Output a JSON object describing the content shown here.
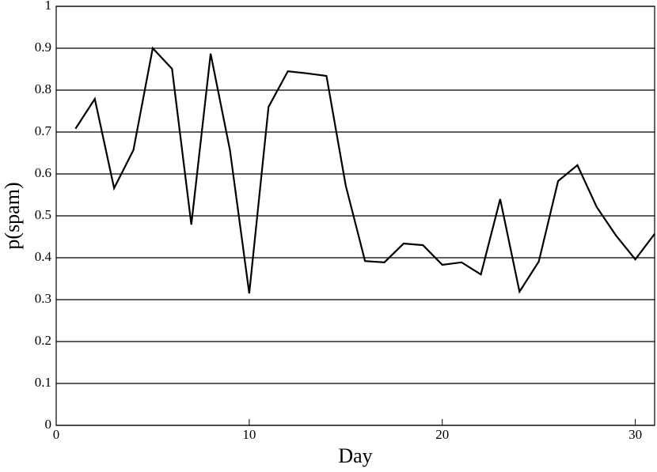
{
  "chart_data": {
    "type": "line",
    "x_label": "Day",
    "y_label": "p(spam)",
    "x": [
      1,
      2,
      3,
      4,
      5,
      6,
      7,
      8,
      9,
      10,
      11,
      12,
      13,
      14,
      15,
      16,
      17,
      18,
      19,
      20,
      21,
      22,
      23,
      24,
      25,
      26,
      27,
      28,
      29,
      30,
      31
    ],
    "series": [
      {
        "color": "#000000",
        "values": [
          0.708,
          0.779,
          0.566,
          0.657,
          0.9,
          0.851,
          0.479,
          0.887,
          0.657,
          0.315,
          0.76,
          0.845,
          0.84,
          0.834,
          0.572,
          0.392,
          0.389,
          0.434,
          0.43,
          0.383,
          0.389,
          0.36,
          0.54,
          0.319,
          0.391,
          0.583,
          0.621,
          0.521,
          0.453,
          0.396,
          0.457
        ]
      }
    ],
    "xlim": [
      0,
      31
    ],
    "xticks": [
      0,
      10,
      20,
      30
    ],
    "ylim": [
      0,
      1
    ],
    "yticks": [
      0,
      0.1,
      0.2,
      0.3,
      0.4,
      0.5,
      0.6,
      0.7,
      0.8,
      0.9,
      1
    ],
    "grid": true
  }
}
